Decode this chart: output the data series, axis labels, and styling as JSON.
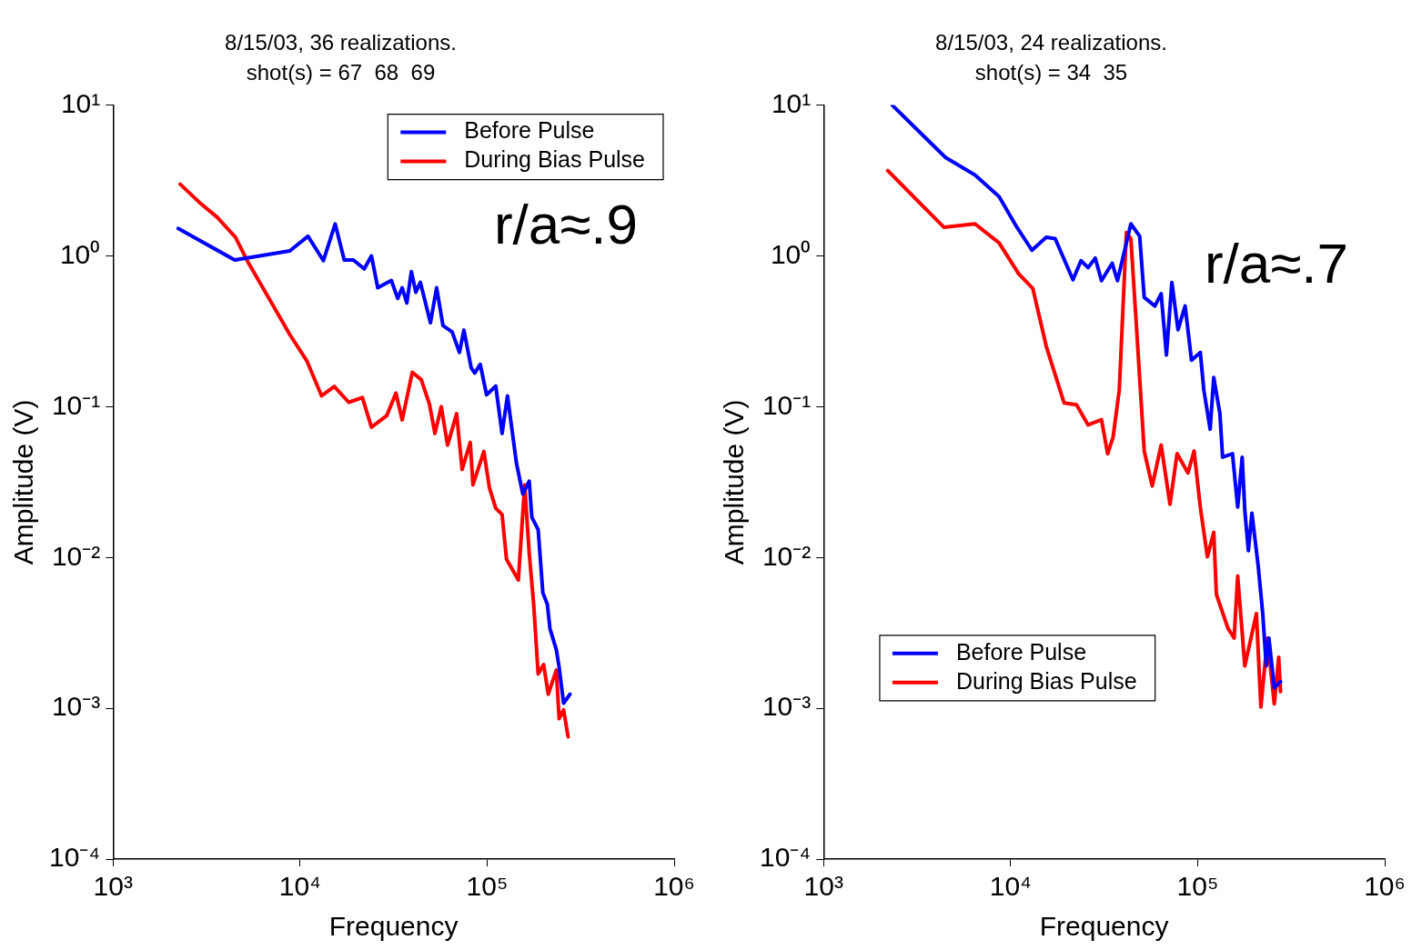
{
  "chart_data": [
    {
      "type": "line",
      "title": "8/15/03, 36 realizations.",
      "subtitle": "shot(s) = 67  68  69",
      "xlabel": "Frequency",
      "ylabel": "Amplitude (V)",
      "annotations": [
        "r/a≈.9"
      ],
      "log": "xy",
      "grid": false,
      "legend": "top right",
      "xlim": [
        1000,
        1000000
      ],
      "ylim": [
        0.0001,
        10
      ],
      "xticks": [
        {
          "value": 1000,
          "label": "10³"
        },
        {
          "value": 10000,
          "label": "10⁴"
        },
        {
          "value": 100000,
          "label": "10⁵"
        },
        {
          "value": 1000000,
          "label": "10⁶"
        }
      ],
      "yticks": [
        {
          "value": 0.0001,
          "label": "10⁻⁴"
        },
        {
          "value": 0.001,
          "label": "10⁻³"
        },
        {
          "value": 0.01,
          "label": "10⁻²"
        },
        {
          "value": 0.1,
          "label": "10⁻¹"
        },
        {
          "value": 1,
          "label": "10⁰"
        },
        {
          "value": 10,
          "label": "10¹"
        }
      ],
      "series": [
        {
          "name": "Before Pulse",
          "color": "#0000ff",
          "x": [
            2230,
            4470,
            8810,
            11020,
            13330,
            15400,
            17220,
            19270,
            22030,
            24070,
            26020,
            30760,
            33270,
            35160,
            37220,
            39350,
            41590,
            43950,
            49770,
            53700,
            58080,
            65010,
            71120,
            75160,
            82190,
            85900,
            91870,
            99320,
            111200,
            120200,
            128500,
            143500,
            155200,
            167900,
            173400,
            187500,
            198600,
            209900,
            216800,
            234400,
            242700,
            256400,
            277300
          ],
          "values": [
            1.52,
            0.94,
            1.08,
            1.35,
            0.93,
            1.63,
            0.94,
            0.94,
            0.82,
            1.0,
            0.615,
            0.687,
            0.522,
            0.615,
            0.487,
            0.787,
            0.574,
            0.668,
            0.36,
            0.615,
            0.345,
            0.313,
            0.229,
            0.322,
            0.181,
            0.167,
            0.191,
            0.12,
            0.137,
            0.0664,
            0.118,
            0.0422,
            0.0264,
            0.0321,
            0.0185,
            0.0153,
            0.00583,
            0.00489,
            0.00337,
            0.00245,
            0.00187,
            0.00108,
            0.00124
          ]
        },
        {
          "name": "During Bias Pulse",
          "color": "#ff0000",
          "x": [
            2285,
            2888,
            3610,
            4510,
            5280,
            6820,
            8810,
            10900,
            13030,
            15240,
            18200,
            21530,
            24070,
            29100,
            32530,
            35160,
            39790,
            44460,
            49170,
            52580,
            56870,
            61460,
            68710,
            73490,
            81260,
            83980,
            96080,
            102800,
            111200,
            120200,
            127000,
            146900,
            158800,
            167900,
            177400,
            187500,
            200500,
            212300,
            234400,
            242700,
            256400,
            271000
          ],
          "values": [
            2.99,
            2.27,
            1.8,
            1.33,
            0.903,
            0.522,
            0.301,
            0.2,
            0.118,
            0.136,
            0.107,
            0.115,
            0.0731,
            0.0874,
            0.123,
            0.0817,
            0.169,
            0.151,
            0.104,
            0.0664,
            0.1,
            0.0556,
            0.0898,
            0.0383,
            0.058,
            0.0303,
            0.0505,
            0.0291,
            0.0212,
            0.0193,
            0.00971,
            0.00708,
            0.0303,
            0.0107,
            0.00489,
            0.00169,
            0.00195,
            0.00124,
            0.00179,
            0.000853,
            0.000978,
            0.000647
          ]
        }
      ]
    },
    {
      "type": "line",
      "title": "8/15/03, 24 realizations.",
      "subtitle": "shot(s) = 34  35",
      "xlabel": "Frequency",
      "ylabel": "Amplitude (V)",
      "annotations": [
        "r/a≈.7"
      ],
      "log": "xy",
      "grid": false,
      "legend": "bottom left",
      "xlim": [
        1000,
        1000000
      ],
      "ylim": [
        0.0001,
        10
      ],
      "xticks": [
        {
          "value": 1000,
          "label": "10³"
        },
        {
          "value": 10000,
          "label": "10⁴"
        },
        {
          "value": 100000,
          "label": "10⁵"
        },
        {
          "value": 1000000,
          "label": "10⁶"
        }
      ],
      "yticks": [
        {
          "value": 0.0001,
          "label": "10⁻⁴"
        },
        {
          "value": 0.001,
          "label": "10⁻³"
        },
        {
          "value": 0.01,
          "label": "10⁻²"
        },
        {
          "value": 0.1,
          "label": "10⁻¹"
        },
        {
          "value": 1,
          "label": "10⁰"
        },
        {
          "value": 10,
          "label": "10¹"
        }
      ],
      "series": [
        {
          "name": "Before Pulse",
          "color": "#0000ff",
          "x": [
            2326,
            3232,
            4487,
            6452,
            8673,
            10800,
            13000,
            15500,
            17310,
            21540,
            23780,
            25960,
            28330,
            30610,
            34910,
            37260,
            43950,
            48980,
            51800,
            59050,
            63800,
            68080,
            72780,
            78520,
            85710,
            92680,
            103300,
            107900,
            116600,
            121900,
            131500,
            135900,
            153500,
            163700,
            173000,
            178700,
            186700,
            195000,
            210800,
            222800,
            232700,
            240400,
            256800,
            277300
          ],
          "values": [
            10.0,
            6.7,
            4.49,
            3.44,
            2.47,
            1.55,
            1.09,
            1.33,
            1.3,
            0.694,
            0.93,
            0.836,
            0.968,
            0.685,
            0.894,
            0.685,
            1.63,
            1.35,
            0.531,
            0.465,
            0.561,
            0.22,
            0.667,
            0.324,
            0.465,
            0.203,
            0.229,
            0.129,
            0.0709,
            0.156,
            0.0902,
            0.0462,
            0.0488,
            0.0216,
            0.0462,
            0.0205,
            0.0111,
            0.0197,
            0.00873,
            0.00425,
            0.00191,
            0.00292,
            0.00137,
            0.0015
          ]
        },
        {
          "name": "During Bias Pulse",
          "color": "#ff0000",
          "x": [
            2203,
            4393,
            6452,
            8673,
            11040,
            13150,
            15500,
            19310,
            22510,
            25960,
            30610,
            33030,
            35300,
            38100,
            41590,
            43950,
            46420,
            51800,
            57150,
            63800,
            71120,
            77620,
            88720,
            95710,
            103300,
            112700,
            121900,
            125900,
            145200,
            156700,
            163700,
            178700,
            206100,
            217800,
            236000,
            256800,
            271200,
            277300
          ],
          "values": [
            3.68,
            1.55,
            1.63,
            1.22,
            0.762,
            0.607,
            0.252,
            0.106,
            0.103,
            0.0757,
            0.082,
            0.0488,
            0.0628,
            0.129,
            1.43,
            1.3,
            0.447,
            0.0508,
            0.0298,
            0.0557,
            0.0225,
            0.0488,
            0.0364,
            0.0508,
            0.0216,
            0.0101,
            0.0147,
            0.0057,
            0.00339,
            0.00292,
            0.00754,
            0.00191,
            0.00425,
            0.00102,
            0.00292,
            0.00107,
            0.00218,
            0.00129
          ]
        }
      ]
    }
  ]
}
